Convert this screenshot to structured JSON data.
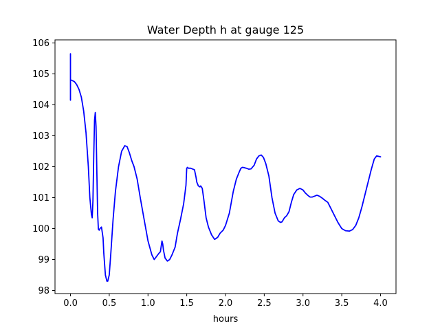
{
  "chart_data": {
    "type": "line",
    "title": "Water Depth h at gauge 125",
    "xlabel": "hours",
    "ylabel": "",
    "xlim": [
      -0.2,
      4.2
    ],
    "ylim": [
      97.9,
      106.1
    ],
    "x_ticks": [
      0.0,
      0.5,
      1.0,
      1.5,
      2.0,
      2.5,
      3.0,
      3.5,
      4.0
    ],
    "x_tick_labels": [
      "0.0",
      "0.5",
      "1.0",
      "1.5",
      "2.0",
      "2.5",
      "3.0",
      "3.5",
      "4.0"
    ],
    "y_ticks": [
      98,
      99,
      100,
      101,
      102,
      103,
      104,
      105,
      106
    ],
    "y_tick_labels": [
      "98",
      "99",
      "100",
      "101",
      "102",
      "103",
      "104",
      "105",
      "106"
    ],
    "grid": false,
    "legend": "none",
    "series": [
      {
        "color": "#0000ff",
        "x": [
          0.0,
          0.0,
          0.0,
          0.0,
          0.01,
          0.05,
          0.08,
          0.11,
          0.14,
          0.17,
          0.2,
          0.23,
          0.25,
          0.27,
          0.28,
          0.29,
          0.3,
          0.31,
          0.32,
          0.33,
          0.34,
          0.35,
          0.36,
          0.37,
          0.38,
          0.4,
          0.42,
          0.43,
          0.45,
          0.47,
          0.48,
          0.5,
          0.52,
          0.55,
          0.58,
          0.62,
          0.66,
          0.7,
          0.73,
          0.76,
          0.79,
          0.82,
          0.86,
          0.9,
          0.95,
          1.0,
          1.05,
          1.08,
          1.11,
          1.14,
          1.16,
          1.18,
          1.19,
          1.2,
          1.22,
          1.25,
          1.28,
          1.31,
          1.35,
          1.38,
          1.42,
          1.46,
          1.49,
          1.5,
          1.51,
          1.52,
          1.55,
          1.58,
          1.6,
          1.62,
          1.63,
          1.65,
          1.67,
          1.68,
          1.7,
          1.72,
          1.75,
          1.78,
          1.82,
          1.86,
          1.9,
          1.93,
          1.97,
          2.0,
          2.05,
          2.1,
          2.14,
          2.18,
          2.2,
          2.22,
          2.24,
          2.27,
          2.3,
          2.33,
          2.37,
          2.4,
          2.43,
          2.46,
          2.49,
          2.52,
          2.56,
          2.6,
          2.64,
          2.68,
          2.71,
          2.73,
          2.76,
          2.79,
          2.82,
          2.85,
          2.88,
          2.92,
          2.96,
          3.0,
          3.03,
          3.06,
          3.09,
          3.12,
          3.15,
          3.18,
          3.21,
          3.24,
          3.28,
          3.32,
          3.36,
          3.4,
          3.45,
          3.5,
          3.55,
          3.6,
          3.64,
          3.68,
          3.72,
          3.76,
          3.8,
          3.84,
          3.88,
          3.92,
          3.95,
          3.97,
          4.0
        ],
        "y": [
          104.15,
          105.65,
          104.8,
          104.8,
          104.8,
          104.75,
          104.65,
          104.5,
          104.25,
          103.8,
          103.1,
          102.0,
          101.0,
          100.45,
          100.35,
          100.9,
          102.4,
          103.5,
          103.75,
          103.3,
          101.8,
          100.5,
          99.98,
          99.95,
          100.0,
          100.05,
          99.7,
          99.2,
          98.5,
          98.3,
          98.3,
          98.5,
          99.2,
          100.3,
          101.2,
          102.0,
          102.5,
          102.68,
          102.65,
          102.45,
          102.2,
          102.0,
          101.6,
          101.0,
          100.3,
          99.6,
          99.15,
          99.0,
          99.1,
          99.2,
          99.25,
          99.6,
          99.5,
          99.3,
          99.05,
          98.95,
          99.0,
          99.15,
          99.4,
          99.85,
          100.3,
          100.8,
          101.4,
          101.95,
          101.98,
          101.95,
          101.95,
          101.92,
          101.9,
          101.65,
          101.5,
          101.38,
          101.35,
          101.38,
          101.3,
          100.95,
          100.35,
          100.05,
          99.8,
          99.65,
          99.72,
          99.85,
          99.95,
          100.1,
          100.5,
          101.2,
          101.6,
          101.85,
          101.95,
          101.98,
          101.97,
          101.95,
          101.92,
          101.93,
          102.05,
          102.25,
          102.35,
          102.38,
          102.3,
          102.1,
          101.7,
          101.0,
          100.5,
          100.25,
          100.2,
          100.22,
          100.35,
          100.42,
          100.55,
          100.85,
          101.1,
          101.25,
          101.3,
          101.25,
          101.15,
          101.08,
          101.02,
          101.02,
          101.05,
          101.08,
          101.05,
          101.0,
          100.92,
          100.85,
          100.65,
          100.45,
          100.2,
          100.0,
          99.93,
          99.92,
          99.97,
          100.1,
          100.35,
          100.7,
          101.1,
          101.5,
          101.9,
          102.25,
          102.35,
          102.34,
          102.32
        ]
      }
    ]
  }
}
